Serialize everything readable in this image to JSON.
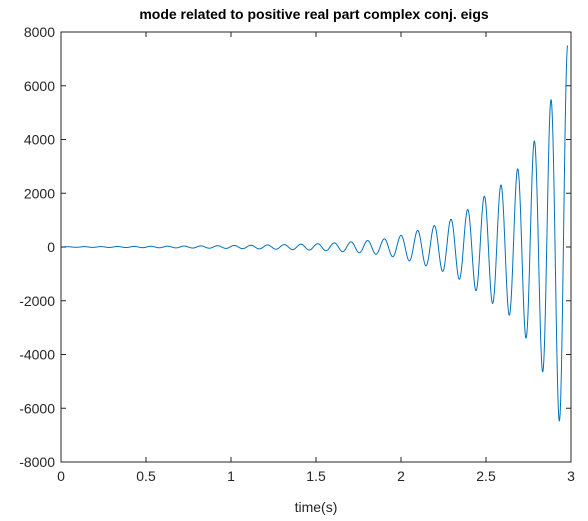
{
  "chart_data": {
    "type": "line",
    "title": "mode related to positive real part complex conj. eigs",
    "xlabel": "time(s)",
    "ylabel": "",
    "xlim": [
      0,
      3
    ],
    "ylim": [
      -8000,
      8000
    ],
    "xticks": [
      0,
      0.5,
      1,
      1.5,
      2,
      2.5,
      3
    ],
    "xtick_labels": [
      "0",
      "0.5",
      "1",
      "1.5",
      "2",
      "2.5",
      "3"
    ],
    "yticks": [
      -8000,
      -6000,
      -4000,
      -2000,
      0,
      2000,
      4000,
      6000,
      8000
    ],
    "ytick_labels": [
      "-8000",
      "-6000",
      "-4000",
      "-2000",
      "0",
      "2000",
      "4000",
      "6000",
      "8000"
    ],
    "grid": false,
    "legend": "none",
    "series": [
      {
        "color": "#0072BD",
        "x": [
          0,
          0.5,
          1.0,
          1.5,
          1.9,
          2.1,
          2.3,
          2.5,
          2.65,
          2.8,
          2.93,
          2.98
        ],
        "envelope": [
          10,
          25,
          55,
          120,
          300,
          620,
          1050,
          1950,
          2600,
          4150,
          6450,
          7500
        ],
        "frequency_hz": 10.2
      }
    ],
    "line_color": "#0072BD"
  }
}
